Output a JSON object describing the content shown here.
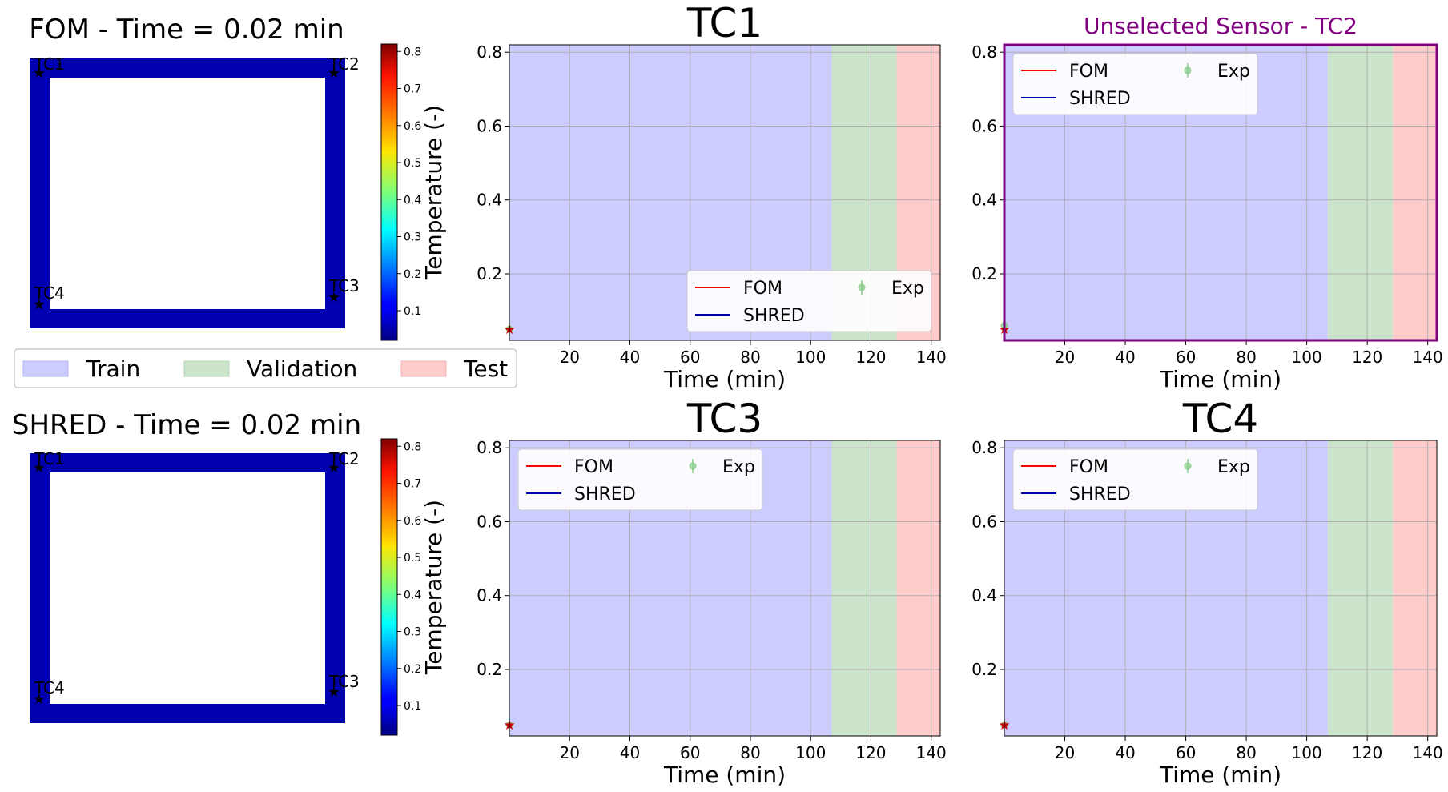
{
  "fields": [
    {
      "title": "FOM - Time = 0.02 min",
      "colorbar": {
        "label": "Temperature (-)",
        "ticks": [
          "0.1",
          "0.2",
          "0.3",
          "0.4",
          "0.5",
          "0.6",
          "0.7",
          "0.8"
        ],
        "min": 0.02,
        "max": 0.82
      },
      "sensors": [
        "TC1",
        "TC2",
        "TC3",
        "TC4"
      ]
    },
    {
      "title": "SHRED - Time = 0.02 min",
      "colorbar": {
        "label": "Temperature (-)",
        "ticks": [
          "0.1",
          "0.2",
          "0.3",
          "0.4",
          "0.5",
          "0.6",
          "0.7",
          "0.8"
        ],
        "min": 0.02,
        "max": 0.82
      },
      "sensors": [
        "TC1",
        "TC2",
        "TC3",
        "TC4"
      ]
    }
  ],
  "phase_legend": {
    "train": "Train",
    "validation": "Validation",
    "test": "Test"
  },
  "colors": {
    "train": "#ccccff",
    "validation": "#cce4cc",
    "test": "#ffcccc",
    "fom": "#ff0000",
    "shred": "#0000aa",
    "exp": "#88cc88",
    "field": "#0000b0",
    "unselected": "#800080"
  },
  "chart_data": [
    {
      "type": "line",
      "title": "TC1",
      "xlabel": "Time (min)",
      "ylabel": "",
      "xlim": [
        0,
        143
      ],
      "ylim": [
        0.02,
        0.82
      ],
      "xticks": [
        20,
        40,
        60,
        80,
        100,
        120,
        140
      ],
      "yticks": [
        0.2,
        0.4,
        0.6,
        0.8
      ],
      "grid": true,
      "legend_position": "lower-right",
      "regions": [
        {
          "name": "Train",
          "from": 0,
          "to": 107
        },
        {
          "name": "Validation",
          "from": 107,
          "to": 128.5
        },
        {
          "name": "Test",
          "from": 128.5,
          "to": 143
        }
      ],
      "series": [
        {
          "name": "FOM",
          "x": [
            0.02
          ],
          "y": [
            0.05
          ]
        },
        {
          "name": "SHRED",
          "x": [
            0.02
          ],
          "y": [
            0.05
          ]
        },
        {
          "name": "Exp",
          "x": [
            0.02
          ],
          "y": [
            0.05
          ]
        }
      ]
    },
    {
      "type": "line",
      "title": "Unselected Sensor - TC2",
      "xlabel": "Time (min)",
      "ylabel": "",
      "xlim": [
        0,
        143
      ],
      "ylim": [
        0.02,
        0.82
      ],
      "xticks": [
        20,
        40,
        60,
        80,
        100,
        120,
        140
      ],
      "yticks": [
        0.2,
        0.4,
        0.6,
        0.8
      ],
      "grid": true,
      "legend_position": "upper-left",
      "highlight": true,
      "regions": [
        {
          "name": "Train",
          "from": 0,
          "to": 107
        },
        {
          "name": "Validation",
          "from": 107,
          "to": 128.5
        },
        {
          "name": "Test",
          "from": 128.5,
          "to": 143
        }
      ],
      "series": [
        {
          "name": "FOM",
          "x": [
            0.02
          ],
          "y": [
            0.05
          ]
        },
        {
          "name": "SHRED",
          "x": [
            0.02
          ],
          "y": [
            0.05
          ]
        },
        {
          "name": "Exp",
          "x": [
            0.02
          ],
          "y": [
            0.06
          ]
        }
      ]
    },
    {
      "type": "line",
      "title": "TC3",
      "xlabel": "Time (min)",
      "ylabel": "",
      "xlim": [
        0,
        143
      ],
      "ylim": [
        0.02,
        0.82
      ],
      "xticks": [
        20,
        40,
        60,
        80,
        100,
        120,
        140
      ],
      "yticks": [
        0.2,
        0.4,
        0.6,
        0.8
      ],
      "grid": true,
      "legend_position": "upper-left",
      "regions": [
        {
          "name": "Train",
          "from": 0,
          "to": 107
        },
        {
          "name": "Validation",
          "from": 107,
          "to": 128.5
        },
        {
          "name": "Test",
          "from": 128.5,
          "to": 143
        }
      ],
      "series": [
        {
          "name": "FOM",
          "x": [
            0.02
          ],
          "y": [
            0.05
          ]
        },
        {
          "name": "SHRED",
          "x": [
            0.02
          ],
          "y": [
            0.05
          ]
        },
        {
          "name": "Exp",
          "x": [
            0.02
          ],
          "y": [
            0.05
          ]
        }
      ]
    },
    {
      "type": "line",
      "title": "TC4",
      "xlabel": "Time (min)",
      "ylabel": "",
      "xlim": [
        0,
        143
      ],
      "ylim": [
        0.02,
        0.82
      ],
      "xticks": [
        20,
        40,
        60,
        80,
        100,
        120,
        140
      ],
      "yticks": [
        0.2,
        0.4,
        0.6,
        0.8
      ],
      "grid": true,
      "legend_position": "upper-left",
      "regions": [
        {
          "name": "Train",
          "from": 0,
          "to": 107
        },
        {
          "name": "Validation",
          "from": 107,
          "to": 128.5
        },
        {
          "name": "Test",
          "from": 128.5,
          "to": 143
        }
      ],
      "series": [
        {
          "name": "FOM",
          "x": [
            0.02
          ],
          "y": [
            0.05
          ]
        },
        {
          "name": "SHRED",
          "x": [
            0.02
          ],
          "y": [
            0.05
          ]
        },
        {
          "name": "Exp",
          "x": [
            0.02
          ],
          "y": [
            0.05
          ]
        }
      ]
    }
  ]
}
